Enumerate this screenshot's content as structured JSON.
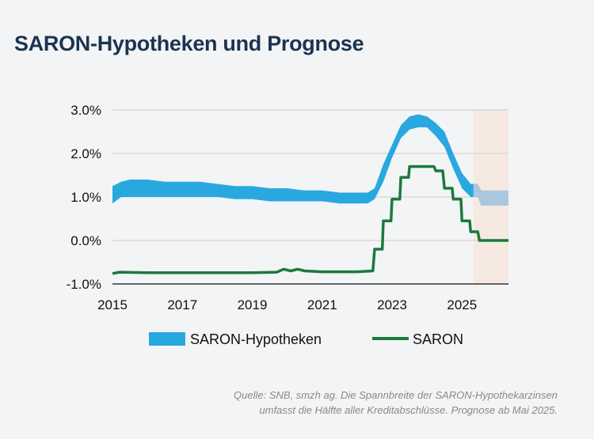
{
  "title": "SARON-Hypotheken und Prognose",
  "footnote": {
    "line1": "Quelle: SNB, smzh ag. Die Spannbreite der SARON-Hypothekarzinsen",
    "line2": "umfasst die Hälfte aller Kreditabschlüsse. Prognose ab Mai 2025."
  },
  "chart_data": {
    "type": "area",
    "title": "SARON-Hypotheken und Prognose",
    "xlim": [
      2015,
      2026.33
    ],
    "ylim": [
      -1.0,
      3.0
    ],
    "y_ticks": [
      "3.0%",
      "2.0%",
      "1.0%",
      "0.0%",
      "-1.0%"
    ],
    "y_tick_values": [
      3,
      2,
      1,
      0,
      -1
    ],
    "x_ticks": [
      "2015",
      "2017",
      "2019",
      "2021",
      "2023",
      "2025"
    ],
    "x_tick_values": [
      2015,
      2017,
      2019,
      2021,
      2023,
      2025
    ],
    "grid": "horizontal",
    "legend_placement": "bottom",
    "forecast_start": 2025.33,
    "colors": {
      "band": "#29a8e0",
      "band_forecast": "#a9c8df",
      "saron": "#1a7a3c",
      "forecast_shade": "#f6e9e1",
      "grid": "#d9d9d9"
    },
    "series": [
      {
        "name": "SARON-Hypotheken",
        "x": [
          2015,
          2015.25,
          2015.5,
          2016,
          2016.5,
          2017,
          2017.5,
          2018,
          2018.5,
          2019,
          2019.5,
          2020,
          2020.5,
          2021,
          2021.5,
          2022,
          2022.3,
          2022.5,
          2022.75,
          2023,
          2023.25,
          2023.5,
          2023.75,
          2024,
          2024.25,
          2024.5,
          2024.75,
          2025,
          2025.25,
          2025.33
        ],
        "lower": [
          0.85,
          1.0,
          1.0,
          1.0,
          1.0,
          1.0,
          1.0,
          1.0,
          0.95,
          0.95,
          0.9,
          0.9,
          0.9,
          0.9,
          0.85,
          0.85,
          0.85,
          0.95,
          1.35,
          1.9,
          2.35,
          2.55,
          2.6,
          2.6,
          2.4,
          2.15,
          1.65,
          1.2,
          1.0,
          1.0
        ],
        "upper": [
          1.25,
          1.35,
          1.4,
          1.4,
          1.35,
          1.35,
          1.35,
          1.3,
          1.25,
          1.25,
          1.2,
          1.2,
          1.15,
          1.15,
          1.1,
          1.1,
          1.1,
          1.2,
          1.75,
          2.2,
          2.65,
          2.85,
          2.9,
          2.85,
          2.7,
          2.5,
          2.0,
          1.55,
          1.3,
          1.3
        ]
      },
      {
        "name": "SARON-Hypotheken Prognose",
        "x": [
          2025.33,
          2025.45,
          2025.55,
          2026.33
        ],
        "lower": [
          1.0,
          1.0,
          0.8,
          0.8
        ],
        "upper": [
          1.3,
          1.3,
          1.15,
          1.15
        ]
      },
      {
        "name": "SARON",
        "x": [
          2015,
          2015.2,
          2016,
          2017,
          2018,
          2019,
          2019.7,
          2019.9,
          2020.1,
          2020.3,
          2020.5,
          2021,
          2022,
          2022.45,
          2022.5,
          2022.72,
          2022.75,
          2022.97,
          2023,
          2023.22,
          2023.25,
          2023.47,
          2023.5,
          2024.2,
          2024.25,
          2024.45,
          2024.5,
          2024.72,
          2024.75,
          2024.97,
          2025,
          2025.22,
          2025.25,
          2025.45,
          2025.5,
          2026.33
        ],
        "y": [
          -0.76,
          -0.73,
          -0.74,
          -0.74,
          -0.74,
          -0.74,
          -0.73,
          -0.66,
          -0.7,
          -0.66,
          -0.7,
          -0.72,
          -0.72,
          -0.7,
          -0.2,
          -0.2,
          0.45,
          0.45,
          0.95,
          0.95,
          1.45,
          1.45,
          1.7,
          1.7,
          1.6,
          1.6,
          1.2,
          1.2,
          0.95,
          0.95,
          0.45,
          0.45,
          0.2,
          0.2,
          0.0,
          0.0
        ]
      }
    ],
    "legend": [
      "SARON-Hypotheken",
      "SARON"
    ]
  }
}
